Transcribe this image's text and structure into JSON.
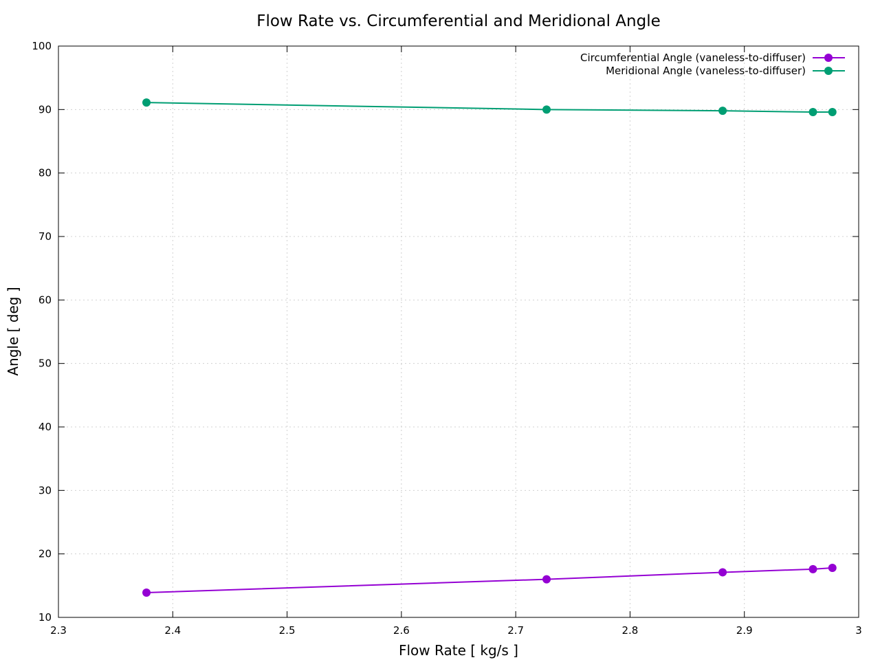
{
  "chart_data": {
    "type": "line",
    "title": "Flow Rate vs. Circumferential and Meridional Angle",
    "xlabel": "Flow Rate [ kg/s ]",
    "ylabel": "Angle [ deg ]",
    "xlim": [
      2.3,
      3.0
    ],
    "ylim": [
      10,
      100
    ],
    "xticks": [
      "2.3",
      "2.4",
      "2.5",
      "2.6",
      "2.7",
      "2.8",
      "2.9",
      "3"
    ],
    "yticks": [
      "10",
      "20",
      "30",
      "40",
      "50",
      "60",
      "70",
      "80",
      "90",
      "100"
    ],
    "grid": true,
    "legend_position": "top-right",
    "series": [
      {
        "name": "Circumferential Angle (vaneless-to-diffuser)",
        "color": "#9400d3",
        "x": [
          2.377,
          2.727,
          2.881,
          2.96,
          2.977
        ],
        "y": [
          13.9,
          16.0,
          17.1,
          17.6,
          17.8
        ]
      },
      {
        "name": "Meridional Angle (vaneless-to-diffuser)",
        "color": "#009e73",
        "x": [
          2.377,
          2.727,
          2.881,
          2.96,
          2.977
        ],
        "y": [
          91.1,
          90.0,
          89.8,
          89.6,
          89.6
        ]
      }
    ]
  }
}
